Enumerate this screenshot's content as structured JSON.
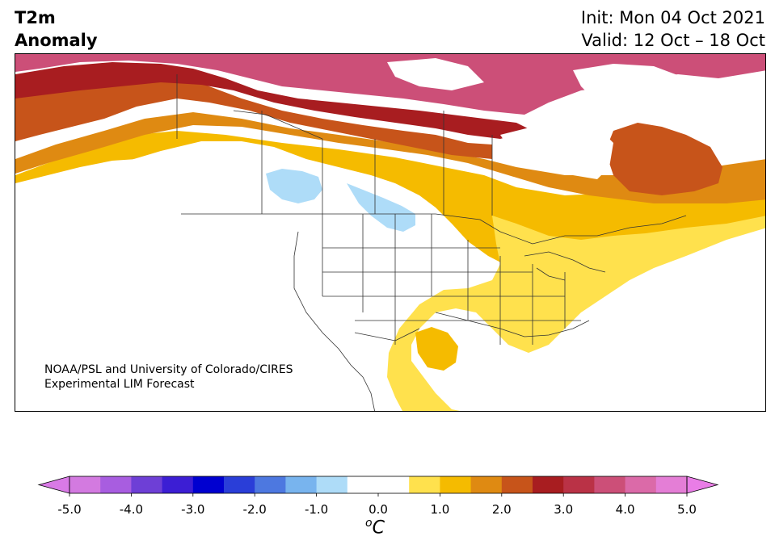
{
  "header": {
    "title_line1": "T2m",
    "title_line2": "Anomaly",
    "init": "Init: Mon 04 Oct 2021",
    "valid": "Valid: 12 Oct – 18 Oct"
  },
  "credit": {
    "line1": "NOAA/PSL and University of Colorado/CIRES",
    "line2": "Experimental LIM Forecast"
  },
  "colorbar": {
    "unit_super": "o",
    "unit_main": "C",
    "min": -5.0,
    "max": 5.0,
    "step": 0.5,
    "extend": "both",
    "tick_labels": [
      "-5.0",
      "-4.0",
      "-3.0",
      "-2.0",
      "-1.0",
      "0.0",
      "1.0",
      "2.0",
      "3.0",
      "4.0",
      "5.0"
    ],
    "colors": [
      "#d37ae0",
      "#a85de0",
      "#6e3fd6",
      "#3c1ed4",
      "#0000d0",
      "#2a3ed8",
      "#4d78e0",
      "#78b4ee",
      "#aedcf8",
      "#ffffff",
      "#ffffff",
      "#ffe14d",
      "#f5bb00",
      "#df8a12",
      "#c7541a",
      "#a81d20",
      "#ba3246",
      "#cc4f78",
      "#db6aa8",
      "#e47ed6"
    ],
    "low_extend_color": "#d97ae6",
    "high_extend_color": "#e97de6"
  },
  "map": {
    "region": "North America",
    "fill_colors": {
      "magenta": "#cc4f78",
      "red": "#a81d20",
      "dark_orange": "#c7541a",
      "orange": "#df8a12",
      "gold": "#f5bb00",
      "yellow": "#ffe14d",
      "light_blue": "#aedcf8"
    }
  }
}
